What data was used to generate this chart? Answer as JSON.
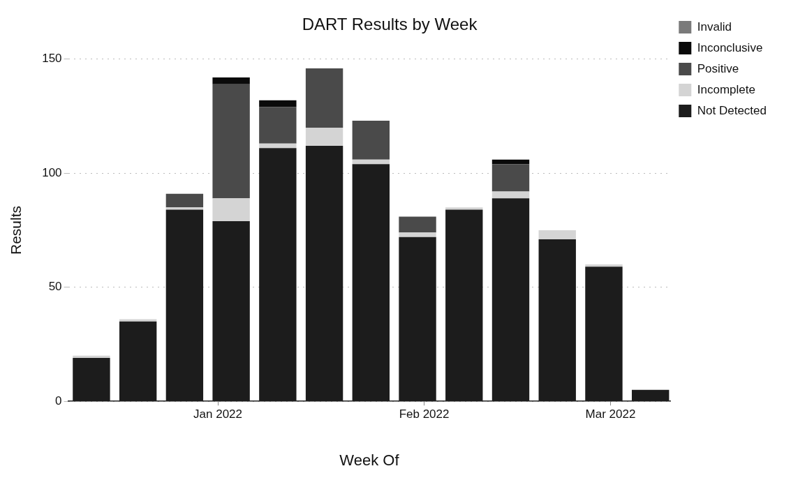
{
  "chart_data": {
    "type": "bar",
    "title": "DART Results by Week",
    "xlabel": "Week Of",
    "ylabel": "Results",
    "x": [
      "2021-12-13",
      "2021-12-20",
      "2021-12-27",
      "2022-01-03",
      "2022-01-10",
      "2022-01-17",
      "2022-01-24",
      "2022-01-31",
      "2022-02-07",
      "2022-02-14",
      "2022-02-21",
      "2022-02-28",
      "2022-03-07"
    ],
    "series": [
      {
        "name": "Not Detected",
        "color": "#1c1c1c",
        "values": [
          19,
          35,
          84,
          79,
          111,
          112,
          104,
          72,
          84,
          89,
          71,
          59,
          5
        ]
      },
      {
        "name": "Incomplete",
        "color": "#d4d4d4",
        "values": [
          1,
          1,
          1,
          10,
          2,
          8,
          2,
          2,
          1,
          3,
          4,
          1,
          0
        ]
      },
      {
        "name": "Positive",
        "color": "#4a4a4a",
        "values": [
          0,
          0,
          6,
          50,
          16,
          26,
          17,
          7,
          0,
          12,
          0,
          0,
          0
        ]
      },
      {
        "name": "Inconclusive",
        "color": "#0a0a0a",
        "values": [
          0,
          0,
          0,
          3,
          3,
          0,
          0,
          0,
          0,
          2,
          0,
          0,
          0
        ]
      },
      {
        "name": "Invalid",
        "color": "#7a7a7a",
        "values": [
          0,
          0,
          0,
          0,
          0,
          0,
          0,
          0,
          0,
          0,
          0,
          0,
          0
        ]
      }
    ],
    "stacked": true,
    "xlim": [
      "2021-12-09T12:00",
      "2022-03-10"
    ],
    "xticks": [
      {
        "value": "2022-01-01",
        "label": "Jan 2022"
      },
      {
        "value": "2022-02-01",
        "label": "Feb 2022"
      },
      {
        "value": "2022-03-01",
        "label": "Mar 2022"
      }
    ],
    "ylim": [
      0,
      150
    ],
    "yticks": [
      0,
      50,
      100,
      150
    ],
    "grid": "y",
    "legend": "top right"
  }
}
